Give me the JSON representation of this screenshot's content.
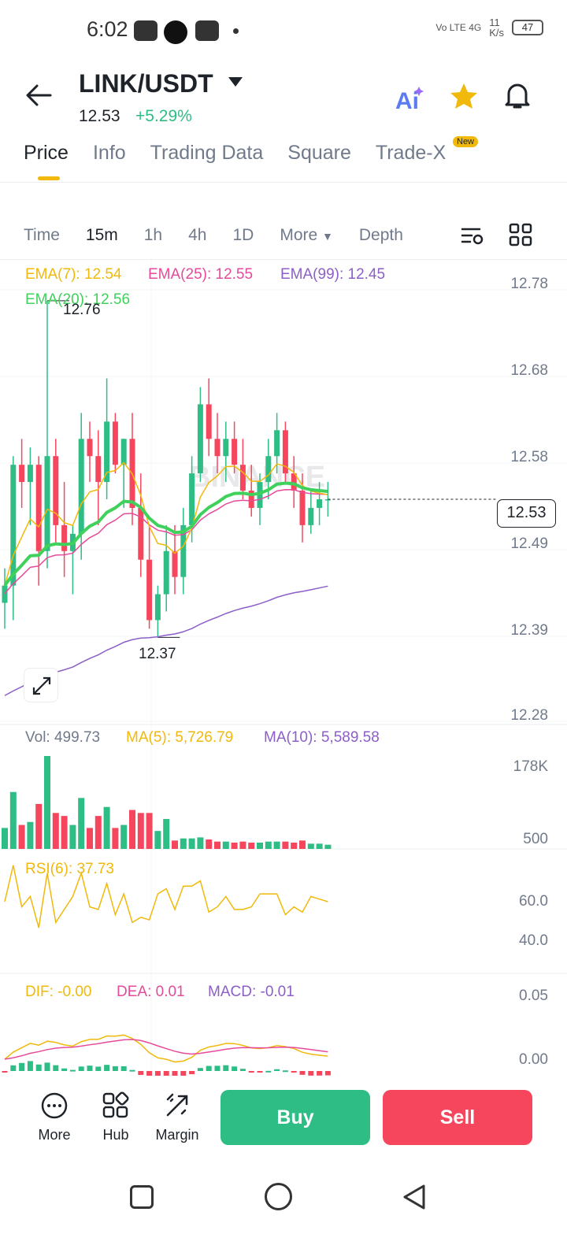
{
  "status_bar": {
    "time": "6:02",
    "net_speed": "11\nK/s",
    "battery": "47",
    "signal": "Vo LTE 4G"
  },
  "header": {
    "pair": "LINK/USDT",
    "last_price": "12.53",
    "change_pct": "+5.29%",
    "icons": [
      "back-arrow-icon",
      "ai-icon",
      "star-icon",
      "bell-icon"
    ]
  },
  "tabs": [
    {
      "label": "Price",
      "active": true
    },
    {
      "label": "Info"
    },
    {
      "label": "Trading Data"
    },
    {
      "label": "Square"
    },
    {
      "label": "Trade-X",
      "badge": "New"
    }
  ],
  "intervals": {
    "items": [
      "Time",
      "15m",
      "1h",
      "4h",
      "1D",
      "More",
      "Depth"
    ],
    "active": "15m"
  },
  "chart": {
    "ema_legend": {
      "ema7": "EMA(7): 12.54",
      "ema25": "EMA(25): 12.55",
      "ema99": "EMA(99): 12.45",
      "ema20": "EMA(20): 12.56"
    },
    "y_axis": [
      "12.78",
      "12.68",
      "12.58",
      "12.49",
      "12.39",
      "12.28"
    ],
    "high_label": "12.76",
    "low_label": "12.37",
    "current_price_tag": "12.53",
    "watermark": "BINANCE",
    "colors": {
      "up": "#2ebd85",
      "down": "#f6465d",
      "ema7": "#f0b90b",
      "ema25": "#e54b9a",
      "ema99": "#8b5fc7",
      "ema20": "#3fd15c"
    }
  },
  "volume": {
    "legend_vol": "Vol: 499.73",
    "legend_ma5": "MA(5): 5,726.79",
    "legend_ma10": "MA(10): 5,589.58",
    "y_axis": [
      "178K",
      "500"
    ]
  },
  "rsi": {
    "legend": "RSI(6): 37.73",
    "y_axis": [
      "60.0",
      "40.0"
    ]
  },
  "macd": {
    "dif": "DIF: -0.00",
    "dea": "DEA: 0.01",
    "macd": "MACD: -0.01",
    "y_axis": [
      "0.05",
      "0.00"
    ]
  },
  "bottom_bar": {
    "more": "More",
    "hub": "Hub",
    "margin": "Margin",
    "buy": "Buy",
    "sell": "Sell"
  },
  "chart_data": {
    "type": "candlestick",
    "interval": "15m",
    "high": 12.76,
    "low": 12.37,
    "last": 12.53,
    "ylim": [
      12.28,
      12.78
    ],
    "candles": [
      {
        "o": 12.41,
        "h": 12.45,
        "l": 12.38,
        "c": 12.43
      },
      {
        "o": 12.43,
        "h": 12.58,
        "l": 12.39,
        "c": 12.57
      },
      {
        "o": 12.57,
        "h": 12.6,
        "l": 12.52,
        "c": 12.55
      },
      {
        "o": 12.55,
        "h": 12.59,
        "l": 12.5,
        "c": 12.57
      },
      {
        "o": 12.57,
        "h": 12.58,
        "l": 12.43,
        "c": 12.47
      },
      {
        "o": 12.47,
        "h": 12.76,
        "l": 12.45,
        "c": 12.58
      },
      {
        "o": 12.58,
        "h": 12.6,
        "l": 12.48,
        "c": 12.5
      },
      {
        "o": 12.5,
        "h": 12.55,
        "l": 12.44,
        "c": 12.47
      },
      {
        "o": 12.47,
        "h": 12.5,
        "l": 12.42,
        "c": 12.49
      },
      {
        "o": 12.49,
        "h": 12.63,
        "l": 12.46,
        "c": 12.6
      },
      {
        "o": 12.6,
        "h": 12.62,
        "l": 12.55,
        "c": 12.58
      },
      {
        "o": 12.58,
        "h": 12.61,
        "l": 12.5,
        "c": 12.55
      },
      {
        "o": 12.55,
        "h": 12.67,
        "l": 12.53,
        "c": 12.62
      },
      {
        "o": 12.62,
        "h": 12.63,
        "l": 12.56,
        "c": 12.57
      },
      {
        "o": 12.57,
        "h": 12.6,
        "l": 12.52,
        "c": 12.6
      },
      {
        "o": 12.6,
        "h": 12.63,
        "l": 12.5,
        "c": 12.52
      },
      {
        "o": 12.52,
        "h": 12.56,
        "l": 12.44,
        "c": 12.46
      },
      {
        "o": 12.46,
        "h": 12.5,
        "l": 12.38,
        "c": 12.39
      },
      {
        "o": 12.39,
        "h": 12.43,
        "l": 12.37,
        "c": 12.42
      },
      {
        "o": 12.42,
        "h": 12.5,
        "l": 12.4,
        "c": 12.47
      },
      {
        "o": 12.47,
        "h": 12.5,
        "l": 12.42,
        "c": 12.44
      },
      {
        "o": 12.44,
        "h": 12.52,
        "l": 12.42,
        "c": 12.5
      },
      {
        "o": 12.5,
        "h": 12.58,
        "l": 12.48,
        "c": 12.56
      },
      {
        "o": 12.56,
        "h": 12.66,
        "l": 12.55,
        "c": 12.64
      },
      {
        "o": 12.64,
        "h": 12.67,
        "l": 12.58,
        "c": 12.6
      },
      {
        "o": 12.6,
        "h": 12.63,
        "l": 12.56,
        "c": 12.58
      },
      {
        "o": 12.58,
        "h": 12.62,
        "l": 12.55,
        "c": 12.6
      },
      {
        "o": 12.6,
        "h": 12.62,
        "l": 12.56,
        "c": 12.57
      },
      {
        "o": 12.57,
        "h": 12.6,
        "l": 12.53,
        "c": 12.54
      },
      {
        "o": 12.54,
        "h": 12.57,
        "l": 12.51,
        "c": 12.52
      },
      {
        "o": 12.52,
        "h": 12.56,
        "l": 12.5,
        "c": 12.55
      },
      {
        "o": 12.55,
        "h": 12.6,
        "l": 12.53,
        "c": 12.58
      },
      {
        "o": 12.58,
        "h": 12.63,
        "l": 12.56,
        "c": 12.61
      },
      {
        "o": 12.61,
        "h": 12.62,
        "l": 12.55,
        "c": 12.56
      },
      {
        "o": 12.56,
        "h": 12.58,
        "l": 12.52,
        "c": 12.54
      },
      {
        "o": 12.54,
        "h": 12.56,
        "l": 12.48,
        "c": 12.5
      },
      {
        "o": 12.5,
        "h": 12.54,
        "l": 12.49,
        "c": 12.52
      },
      {
        "o": 12.52,
        "h": 12.55,
        "l": 12.5,
        "c": 12.53
      },
      {
        "o": 12.53,
        "h": 12.55,
        "l": 12.51,
        "c": 12.53
      }
    ]
  }
}
